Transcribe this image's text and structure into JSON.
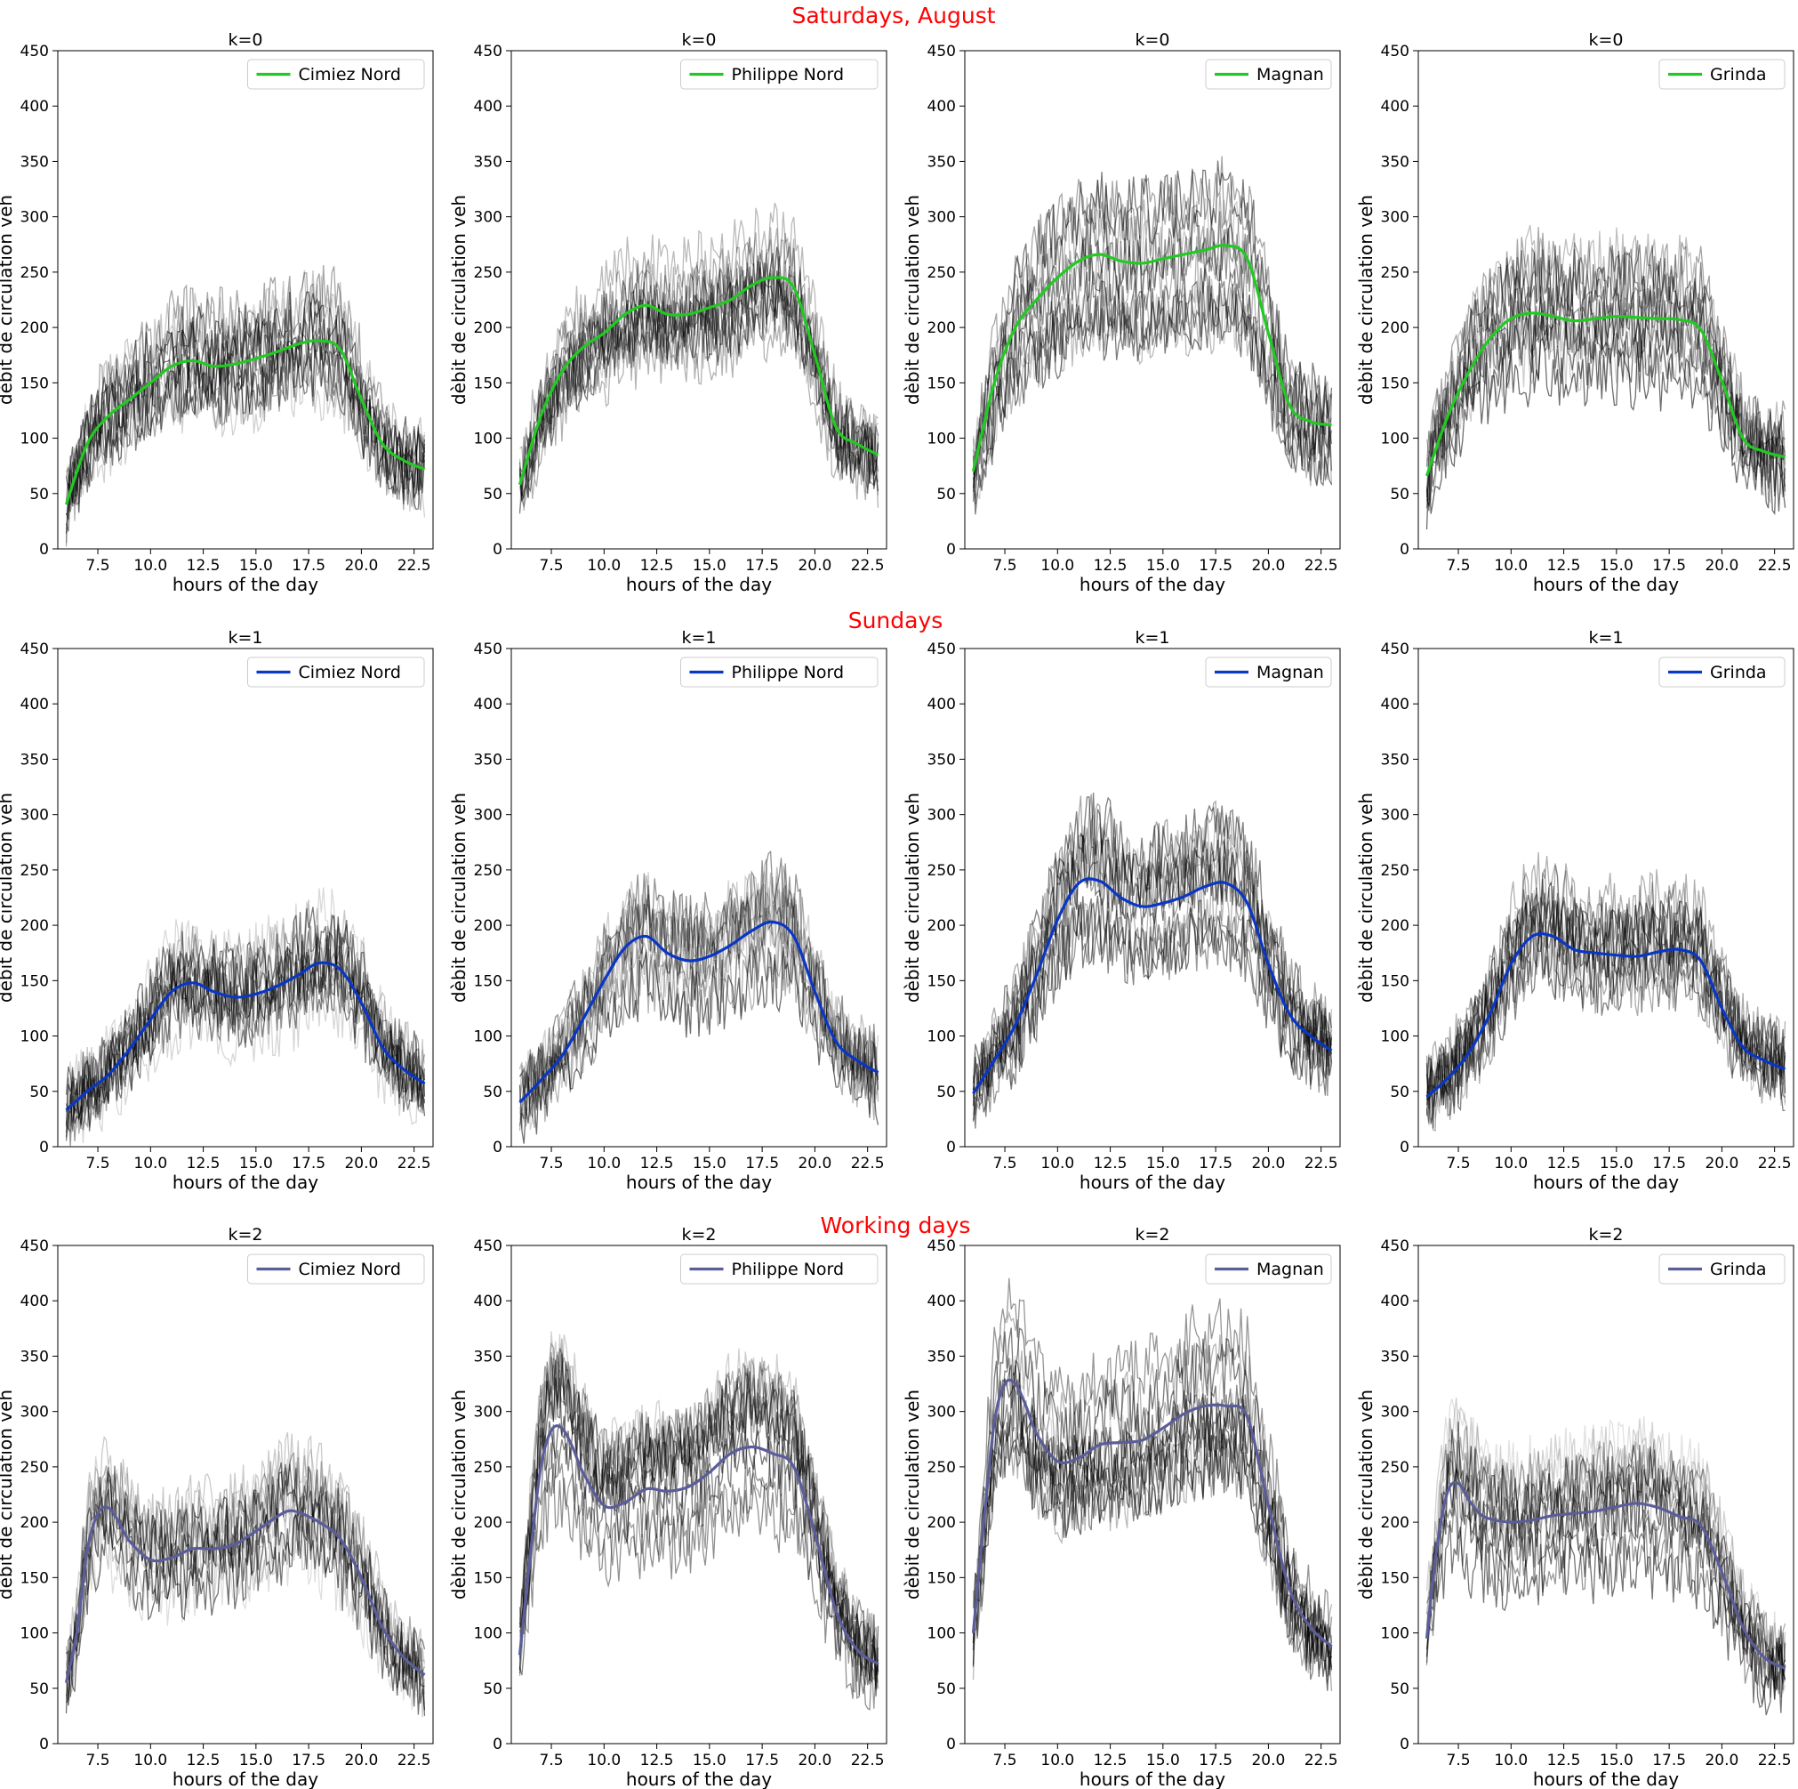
{
  "figure": {
    "row_titles": [
      "Saturdays, August",
      "Sundays",
      "Working days"
    ]
  },
  "chart_data": [
    {
      "type": "line",
      "title": "k=0",
      "xlabel": "hours of the day",
      "ylabel": "dèbit de circulation veh",
      "xlim": [
        5.6,
        23.4
      ],
      "ylim": [
        0,
        450
      ],
      "xticks": [
        "7.5",
        "10.0",
        "12.5",
        "15.0",
        "17.5",
        "20.0",
        "22.5"
      ],
      "yticks": [
        "0",
        "50",
        "100",
        "150",
        "200",
        "250",
        "300",
        "350",
        "400",
        "450"
      ],
      "legend_position": "top-right",
      "grid": false,
      "series": [
        {
          "name": "Cimiez Nord",
          "color": "#22c922",
          "x": [
            6,
            7,
            8,
            9,
            10,
            11,
            12,
            13,
            14,
            15,
            16,
            17,
            18,
            19,
            20,
            21,
            22,
            23
          ],
          "y": [
            40,
            95,
            120,
            135,
            150,
            165,
            170,
            165,
            167,
            172,
            178,
            185,
            188,
            180,
            135,
            95,
            80,
            72
          ]
        }
      ]
    },
    {
      "type": "line",
      "title": "k=0",
      "xlabel": "hours of the day",
      "ylabel": "dèbit de circulation veh",
      "xlim": [
        5.6,
        23.4
      ],
      "ylim": [
        0,
        450
      ],
      "xticks": [
        "7.5",
        "10.0",
        "12.5",
        "15.0",
        "17.5",
        "20.0",
        "22.5"
      ],
      "yticks": [
        "0",
        "50",
        "100",
        "150",
        "200",
        "250",
        "300",
        "350",
        "400",
        "450"
      ],
      "legend_position": "top-right",
      "grid": false,
      "series": [
        {
          "name": "Philippe Nord",
          "color": "#22c922",
          "x": [
            6,
            7,
            8,
            9,
            10,
            11,
            12,
            13,
            14,
            15,
            16,
            17,
            18,
            19,
            20,
            21,
            22,
            23
          ],
          "y": [
            58,
            120,
            160,
            182,
            195,
            212,
            220,
            212,
            212,
            218,
            225,
            238,
            245,
            236,
            175,
            110,
            95,
            85
          ]
        }
      ]
    },
    {
      "type": "line",
      "title": "k=0",
      "xlabel": "hours of the day",
      "ylabel": "dèbit de circulation veh",
      "xlim": [
        5.6,
        23.4
      ],
      "ylim": [
        0,
        450
      ],
      "xticks": [
        "7.5",
        "10.0",
        "12.5",
        "15.0",
        "17.5",
        "20.0",
        "22.5"
      ],
      "yticks": [
        "0",
        "50",
        "100",
        "150",
        "200",
        "250",
        "300",
        "350",
        "400",
        "450"
      ],
      "legend_position": "top-right",
      "grid": false,
      "series": [
        {
          "name": "Magnan",
          "color": "#22c922",
          "x": [
            6,
            7,
            8,
            9,
            10,
            11,
            12,
            13,
            14,
            15,
            16,
            17,
            18,
            19,
            20,
            21,
            22,
            23
          ],
          "y": [
            70,
            150,
            200,
            225,
            245,
            260,
            266,
            260,
            258,
            262,
            266,
            270,
            274,
            262,
            195,
            130,
            115,
            112
          ]
        }
      ]
    },
    {
      "type": "line",
      "title": "k=0",
      "xlabel": "hours of the day",
      "ylabel": "dèbit de circulation veh",
      "xlim": [
        5.6,
        23.4
      ],
      "ylim": [
        0,
        450
      ],
      "xticks": [
        "7.5",
        "10.0",
        "12.5",
        "15.0",
        "17.5",
        "20.0",
        "22.5"
      ],
      "yticks": [
        "0",
        "50",
        "100",
        "150",
        "200",
        "250",
        "300",
        "350",
        "400",
        "450"
      ],
      "legend_position": "top-right",
      "grid": false,
      "series": [
        {
          "name": "Grinda",
          "color": "#22c922",
          "x": [
            6,
            7,
            8,
            9,
            10,
            11,
            12,
            13,
            14,
            15,
            16,
            17,
            18,
            19,
            20,
            21,
            22,
            23
          ],
          "y": [
            66,
            120,
            160,
            190,
            208,
            213,
            210,
            206,
            208,
            210,
            209,
            208,
            207,
            198,
            152,
            100,
            88,
            83
          ]
        }
      ]
    },
    {
      "type": "line",
      "title": "k=1",
      "xlabel": "hours of the day",
      "ylabel": "dèbit de circulation veh",
      "xlim": [
        5.6,
        23.4
      ],
      "ylim": [
        0,
        450
      ],
      "xticks": [
        "7.5",
        "10.0",
        "12.5",
        "15.0",
        "17.5",
        "20.0",
        "22.5"
      ],
      "yticks": [
        "0",
        "50",
        "100",
        "150",
        "200",
        "250",
        "300",
        "350",
        "400",
        "450"
      ],
      "legend_position": "top-right",
      "grid": false,
      "series": [
        {
          "name": "Cimiez Nord",
          "color": "#0a36c4",
          "x": [
            6,
            7,
            8,
            9,
            10,
            11,
            12,
            13,
            14,
            15,
            16,
            17,
            18,
            19,
            20,
            21,
            22,
            23
          ],
          "y": [
            33,
            50,
            65,
            88,
            115,
            140,
            148,
            140,
            135,
            138,
            145,
            155,
            166,
            160,
            130,
            90,
            70,
            57
          ]
        }
      ]
    },
    {
      "type": "line",
      "title": "k=1",
      "xlabel": "hours of the day",
      "ylabel": "dèbit de circulation veh",
      "xlim": [
        5.6,
        23.4
      ],
      "ylim": [
        0,
        450
      ],
      "xticks": [
        "7.5",
        "10.0",
        "12.5",
        "15.0",
        "17.5",
        "20.0",
        "22.5"
      ],
      "yticks": [
        "0",
        "50",
        "100",
        "150",
        "200",
        "250",
        "300",
        "350",
        "400",
        "450"
      ],
      "legend_position": "top-right",
      "grid": false,
      "series": [
        {
          "name": "Philippe Nord",
          "color": "#0a36c4",
          "x": [
            6,
            7,
            8,
            9,
            10,
            11,
            12,
            13,
            14,
            15,
            16,
            17,
            18,
            19,
            20,
            21,
            22,
            23
          ],
          "y": [
            40,
            60,
            82,
            115,
            150,
            180,
            190,
            175,
            168,
            172,
            182,
            195,
            203,
            190,
            140,
            95,
            78,
            67
          ]
        }
      ]
    },
    {
      "type": "line",
      "title": "k=1",
      "xlabel": "hours of the day",
      "ylabel": "dèbit de circulation veh",
      "xlim": [
        5.6,
        23.4
      ],
      "ylim": [
        0,
        450
      ],
      "xticks": [
        "7.5",
        "10.0",
        "12.5",
        "15.0",
        "17.5",
        "20.0",
        "22.5"
      ],
      "yticks": [
        "0",
        "50",
        "100",
        "150",
        "200",
        "250",
        "300",
        "350",
        "400",
        "450"
      ],
      "legend_position": "top-right",
      "grid": false,
      "series": [
        {
          "name": "Magnan",
          "color": "#0a36c4",
          "x": [
            6,
            7,
            8,
            9,
            10,
            11,
            12,
            13,
            14,
            15,
            16,
            17,
            18,
            19,
            20,
            21,
            22,
            23
          ],
          "y": [
            48,
            78,
            110,
            155,
            205,
            238,
            240,
            225,
            217,
            220,
            226,
            235,
            238,
            220,
            165,
            120,
            100,
            87
          ]
        }
      ]
    },
    {
      "type": "line",
      "title": "k=1",
      "xlabel": "hours of the day",
      "ylabel": "dèbit de circulation veh",
      "xlim": [
        5.6,
        23.4
      ],
      "ylim": [
        0,
        450
      ],
      "xticks": [
        "7.5",
        "10.0",
        "12.5",
        "15.0",
        "17.5",
        "20.0",
        "22.5"
      ],
      "yticks": [
        "0",
        "50",
        "100",
        "150",
        "200",
        "250",
        "300",
        "350",
        "400",
        "450"
      ],
      "legend_position": "top-right",
      "grid": false,
      "series": [
        {
          "name": "Grinda",
          "color": "#0a36c4",
          "x": [
            6,
            7,
            8,
            9,
            10,
            11,
            12,
            13,
            14,
            15,
            16,
            17,
            18,
            19,
            20,
            21,
            22,
            23
          ],
          "y": [
            45,
            62,
            85,
            120,
            165,
            190,
            190,
            178,
            175,
            173,
            172,
            176,
            178,
            168,
            125,
            90,
            78,
            70
          ]
        }
      ]
    },
    {
      "type": "line",
      "title": "k=2",
      "xlabel": "hours of the day",
      "ylabel": "dèbit de circulation veh",
      "xlim": [
        5.6,
        23.4
      ],
      "ylim": [
        0,
        450
      ],
      "xticks": [
        "7.5",
        "10.0",
        "12.5",
        "15.0",
        "17.5",
        "20.0",
        "22.5"
      ],
      "yticks": [
        "0",
        "50",
        "100",
        "150",
        "200",
        "250",
        "300",
        "350",
        "400",
        "450"
      ],
      "legend_position": "top-right",
      "grid": false,
      "series": [
        {
          "name": "Cimiez Nord",
          "color": "#5b5d9a",
          "x": [
            6,
            6.5,
            7,
            7.5,
            8,
            8.5,
            9,
            10,
            11,
            12,
            13,
            14,
            15,
            16,
            16.5,
            17,
            18,
            19,
            20,
            21,
            22,
            23
          ],
          "y": [
            55,
            100,
            175,
            208,
            213,
            200,
            183,
            166,
            168,
            176,
            176,
            180,
            192,
            205,
            210,
            209,
            200,
            185,
            150,
            105,
            78,
            62
          ]
        }
      ]
    },
    {
      "type": "line",
      "title": "k=2",
      "xlabel": "hours of the day",
      "ylabel": "dèbit de circulation veh",
      "xlim": [
        5.6,
        23.4
      ],
      "ylim": [
        0,
        450
      ],
      "xticks": [
        "7.5",
        "10.0",
        "12.5",
        "15.0",
        "17.5",
        "20.0",
        "22.5"
      ],
      "yticks": [
        "0",
        "50",
        "100",
        "150",
        "200",
        "250",
        "300",
        "350",
        "400",
        "450"
      ],
      "legend_position": "top-right",
      "grid": false,
      "series": [
        {
          "name": "Philippe Nord",
          "color": "#5b5d9a",
          "x": [
            6,
            6.5,
            7,
            7.5,
            8,
            8.5,
            9,
            10,
            11,
            12,
            13,
            14,
            15,
            16,
            17,
            18,
            19,
            20,
            21,
            22,
            23
          ],
          "y": [
            80,
            170,
            250,
            283,
            285,
            268,
            245,
            215,
            218,
            230,
            228,
            232,
            245,
            262,
            268,
            262,
            250,
            190,
            120,
            85,
            72
          ]
        }
      ]
    },
    {
      "type": "line",
      "title": "k=2",
      "xlabel": "hours of the day",
      "ylabel": "dèbit de circulation veh",
      "xlim": [
        5.6,
        23.4
      ],
      "ylim": [
        0,
        450
      ],
      "xticks": [
        "7.5",
        "10.0",
        "12.5",
        "15.0",
        "17.5",
        "20.0",
        "22.5"
      ],
      "yticks": [
        "0",
        "50",
        "100",
        "150",
        "200",
        "250",
        "300",
        "350",
        "400",
        "450"
      ],
      "legend_position": "top-right",
      "grid": false,
      "series": [
        {
          "name": "Magnan",
          "color": "#5b5d9a",
          "x": [
            6,
            6.5,
            7,
            7.5,
            8,
            8.5,
            9,
            10,
            11,
            12,
            13,
            14,
            15,
            16,
            17,
            18,
            19,
            20,
            21,
            22,
            23
          ],
          "y": [
            100,
            200,
            290,
            325,
            325,
            305,
            280,
            255,
            258,
            270,
            272,
            274,
            285,
            298,
            305,
            305,
            295,
            215,
            140,
            105,
            88
          ]
        }
      ]
    },
    {
      "type": "line",
      "title": "k=2",
      "xlabel": "hours of the day",
      "ylabel": "dèbit de circulation veh",
      "xlim": [
        5.6,
        23.4
      ],
      "ylim": [
        0,
        450
      ],
      "xticks": [
        "7.5",
        "10.0",
        "12.5",
        "15.0",
        "17.5",
        "20.0",
        "22.5"
      ],
      "yticks": [
        "0",
        "50",
        "100",
        "150",
        "200",
        "250",
        "300",
        "350",
        "400",
        "450"
      ],
      "legend_position": "top-right",
      "grid": false,
      "series": [
        {
          "name": "Grinda",
          "color": "#5b5d9a",
          "x": [
            6,
            6.5,
            7,
            7.5,
            8,
            8.5,
            9,
            10,
            11,
            12,
            13,
            14,
            15,
            16,
            17,
            18,
            19,
            20,
            21,
            22,
            23
          ],
          "y": [
            95,
            180,
            228,
            235,
            220,
            208,
            203,
            200,
            202,
            206,
            208,
            210,
            214,
            217,
            213,
            205,
            197,
            155,
            105,
            78,
            68
          ]
        }
      ]
    }
  ]
}
